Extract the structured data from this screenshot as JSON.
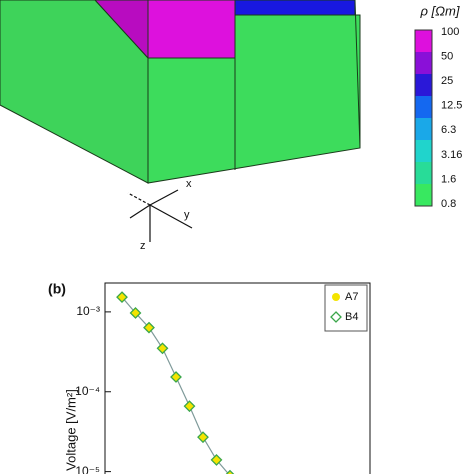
{
  "colorbar": {
    "title": "ρ [Ωm]",
    "ticks": [
      100,
      50,
      25,
      12.5,
      6.3,
      3.16,
      1.6,
      0.8
    ],
    "colors": [
      "#dd10dd",
      "#8a10d8",
      "#2a18d8",
      "#1468f0",
      "#1aa8e8",
      "#20d4cc",
      "#28dc98",
      "#38e860"
    ]
  },
  "axes_triad": {
    "x": "x",
    "y": "y",
    "z": "z"
  },
  "chart_data": {
    "type": "scatter",
    "panel_label": "(b)",
    "y_label": "Voltage [V/m²]",
    "log_y": true,
    "ylim": [
      7.2e-06,
      0.0023
    ],
    "yticks": [
      {
        "value": 0.001,
        "label": "10⁻³"
      },
      {
        "value": 0.0001,
        "label": "10⁻⁴"
      },
      {
        "value": 1e-05,
        "label": "10⁻⁵"
      }
    ],
    "line_color": "#7f9a9a",
    "legend": "upper right",
    "series": [
      {
        "name": "A7",
        "color": "#f4e400",
        "marker": "circle",
        "values": [
          0.00153,
          0.00097,
          0.000635,
          0.00035,
          0.000153,
          6.6e-05,
          2.7e-05,
          1.4e-05,
          8.9e-06
        ]
      },
      {
        "name": "B4",
        "color": "#3aa64a",
        "marker": "diamond",
        "values": [
          0.00153,
          0.00097,
          0.000635,
          0.00035,
          0.000153,
          6.6e-05,
          2.7e-05,
          1.4e-05,
          8.9e-06
        ]
      }
    ]
  }
}
